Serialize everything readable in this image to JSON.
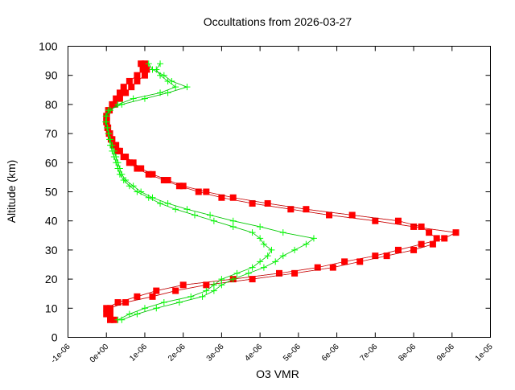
{
  "chart_data": {
    "type": "line",
    "title": "Occultations from 2026-03-27",
    "xlabel": "O3 VMR",
    "ylabel": "Altitude (km)",
    "xlim": [
      -1e-06,
      1e-05
    ],
    "ylim": [
      0,
      100
    ],
    "xticks": [
      -1e-06,
      0,
      1e-06,
      2e-06,
      3e-06,
      4e-06,
      5e-06,
      6e-06,
      7e-06,
      8e-06,
      9e-06,
      1e-05
    ],
    "xtick_labels": [
      "-1e-06",
      "0e+00",
      "1e-06",
      "2e-06",
      "3e-06",
      "4e-06",
      "5e-06",
      "6e-06",
      "7e-06",
      "8e-06",
      "9e-06",
      "1e-05"
    ],
    "yticks": [
      0,
      10,
      20,
      30,
      40,
      50,
      60,
      70,
      80,
      90,
      100
    ],
    "ytick_labels": [
      "0",
      "10",
      "20",
      "30",
      "40",
      "50",
      "60",
      "70",
      "80",
      "90",
      "100"
    ],
    "grid": false,
    "altitude": [
      6,
      8,
      10,
      12,
      14,
      16,
      18,
      20,
      22,
      24,
      26,
      28,
      30,
      32,
      34,
      36,
      38,
      40,
      42,
      44,
      46,
      48,
      50,
      52,
      54,
      56,
      58,
      60,
      62,
      64,
      66,
      68,
      70,
      72,
      74,
      76,
      78,
      80,
      82,
      84,
      86,
      88,
      90,
      92,
      94
    ],
    "series": [
      {
        "color": "#ff0000",
        "marker": "filled-square",
        "profiles": [
          [
            1e-07,
            0,
            0,
            3e-07,
            8e-07,
            1.3e-06,
            2e-06,
            3.3e-06,
            4.5e-06,
            5.5e-06,
            6.2e-06,
            7e-06,
            7.6e-06,
            8.2e-06,
            8.8e-06,
            9.1e-06,
            8e-06,
            7e-06,
            5.8e-06,
            4.8e-06,
            3.8e-06,
            3e-06,
            2.4e-06,
            1.9e-06,
            1.5e-06,
            1.1e-06,
            8e-07,
            6e-07,
            4.5e-07,
            3e-07,
            2e-07,
            1.2e-07,
            7e-08,
            3e-08,
            0,
            0,
            5e-08,
            1.5e-07,
            2.5e-07,
            3.5e-07,
            4.5e-07,
            6e-07,
            8e-07,
            9.5e-07,
            1e-06
          ],
          [
            2e-07,
            1e-07,
            1e-07,
            5e-07,
            1.2e-06,
            1.8e-06,
            2.6e-06,
            3.8e-06,
            4.9e-06,
            5.9e-06,
            6.6e-06,
            7.3e-06,
            8e-06,
            8.5e-06,
            8.6e-06,
            8.4e-06,
            8.2e-06,
            7.6e-06,
            6.4e-06,
            5.2e-06,
            4.2e-06,
            3.3e-06,
            2.6e-06,
            2e-06,
            1.6e-06,
            1.2e-06,
            9e-07,
            7e-07,
            5e-07,
            3.5e-07,
            2.5e-07,
            1.5e-07,
            9e-08,
            4e-08,
            1e-08,
            1e-08,
            8e-08,
            2e-07,
            3.5e-07,
            5e-07,
            6.5e-07,
            8e-07,
            1e-06,
            1.05e-06,
            9e-07
          ]
        ]
      },
      {
        "color": "#00ff00",
        "marker": "plus",
        "profiles": [
          [
            3e-07,
            6e-07,
            1e-06,
            1.5e-06,
            2.2e-06,
            2.6e-06,
            2.8e-06,
            3e-06,
            3.4e-06,
            3.8e-06,
            4e-06,
            4.2e-06,
            4.3e-06,
            4.1e-06,
            4e-06,
            3.8e-06,
            3.3e-06,
            2.8e-06,
            2.3e-06,
            1.8e-06,
            1.4e-06,
            1.1e-06,
            8e-07,
            6e-07,
            4.5e-07,
            3.5e-07,
            3e-07,
            2.5e-07,
            2e-07,
            1.5e-07,
            1e-07,
            8e-08,
            5e-08,
            2e-08,
            0,
            0,
            1e-07,
            3e-07,
            7e-07,
            1.4e-06,
            1.8e-06,
            1.6e-06,
            1.4e-06,
            1.3e-06,
            1.4e-06
          ],
          [
            4e-07,
            8e-07,
            1.3e-06,
            1.9e-06,
            2.5e-06,
            2.8e-06,
            3e-06,
            3.3e-06,
            3.7e-06,
            4.1e-06,
            4.4e-06,
            4.6e-06,
            4.9e-06,
            5.2e-06,
            5.4e-06,
            4.6e-06,
            4e-06,
            3.3e-06,
            2.7e-06,
            2.1e-06,
            1.6e-06,
            1.2e-06,
            9e-07,
            7e-07,
            5e-07,
            4e-07,
            3.5e-07,
            3e-07,
            2.5e-07,
            2e-07,
            1.5e-07,
            1e-07,
            6e-08,
            3e-08,
            -2e-08,
            -1e-08,
            5e-08,
            4e-07,
            1e-06,
            1.6e-06,
            2.1e-06,
            1.7e-06,
            1.5e-06,
            1.2e-06,
            1.1e-06
          ]
        ]
      }
    ]
  }
}
